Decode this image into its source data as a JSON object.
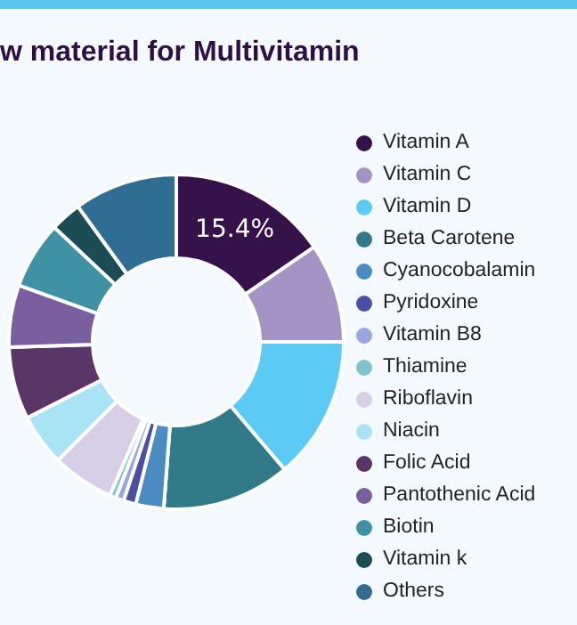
{
  "chart_data": {
    "type": "donut",
    "title": "w material for Multivitamin",
    "categories": [
      "Vitamin A",
      "Vitamin C",
      "Vitamin D",
      "Beta Carotene",
      "Cyanocobalamin",
      "Pyridoxine",
      "Vitamin B8",
      "Thiamine",
      "Riboflavin",
      "Niacin",
      "Folic Acid",
      "Pantothenic Acid",
      "Biotin",
      "Vitamin k",
      "Others"
    ],
    "values": [
      15.4,
      9.6,
      13.8,
      12.4,
      2.7,
      1.2,
      0.8,
      0.6,
      6,
      5,
      7,
      6,
      6.5,
      3,
      10
    ],
    "colors": [
      "#36124a",
      "#a593c6",
      "#5bcbf5",
      "#317a89",
      "#4a8bc2",
      "#4a4fa3",
      "#98a6dd",
      "#7fc4cc",
      "#d6cfe6",
      "#a9e3f6",
      "#5a3568",
      "#7a5fa0",
      "#3f92a3",
      "#1b4d55",
      "#2f6d93"
    ],
    "value_labels": [
      "15.4%",
      null,
      null,
      null,
      null,
      null,
      null,
      null,
      null,
      null,
      null,
      null,
      null,
      null,
      null
    ],
    "legend": "right"
  }
}
